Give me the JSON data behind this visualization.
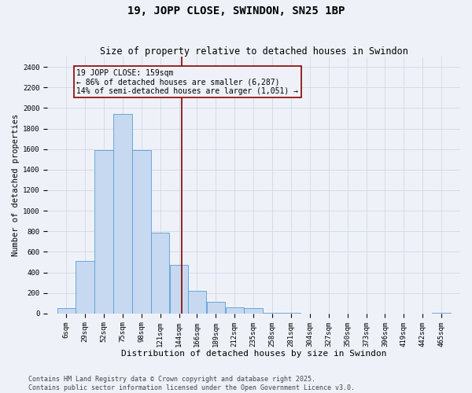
{
  "title": "19, JOPP CLOSE, SWINDON, SN25 1BP",
  "subtitle": "Size of property relative to detached houses in Swindon",
  "xlabel": "Distribution of detached houses by size in Swindon",
  "ylabel": "Number of detached properties",
  "footer_line1": "Contains HM Land Registry data © Crown copyright and database right 2025.",
  "footer_line2": "Contains public sector information licensed under the Open Government Licence v3.0.",
  "property_label": "19 JOPP CLOSE: 159sqm",
  "annotation_line1": "← 86% of detached houses are smaller (6,287)",
  "annotation_line2": "14% of semi-detached houses are larger (1,051) →",
  "vline_x": 159,
  "bar_edges": [
    6,
    29,
    52,
    75,
    98,
    121,
    144,
    166,
    189,
    212,
    235,
    258,
    281,
    304,
    327,
    350,
    373,
    396,
    419,
    442,
    465
  ],
  "bar_heights": [
    50,
    510,
    1590,
    1940,
    1590,
    790,
    470,
    220,
    110,
    60,
    55,
    10,
    5,
    0,
    0,
    0,
    0,
    0,
    0,
    0,
    5
  ],
  "bar_color": "#c6d9f0",
  "bar_edge_color": "#5b9bd5",
  "vline_color": "#8b0000",
  "annotation_box_color": "#8b0000",
  "grid_color": "#d0d8e8",
  "background_color": "#eef2f8",
  "ylim": [
    0,
    2500
  ],
  "yticks": [
    0,
    200,
    400,
    600,
    800,
    1000,
    1200,
    1400,
    1600,
    1800,
    2000,
    2200,
    2400
  ],
  "title_fontsize": 10,
  "subtitle_fontsize": 8.5,
  "xlabel_fontsize": 8,
  "ylabel_fontsize": 7.5,
  "tick_fontsize": 6.5,
  "annotation_fontsize": 7,
  "footer_fontsize": 6
}
